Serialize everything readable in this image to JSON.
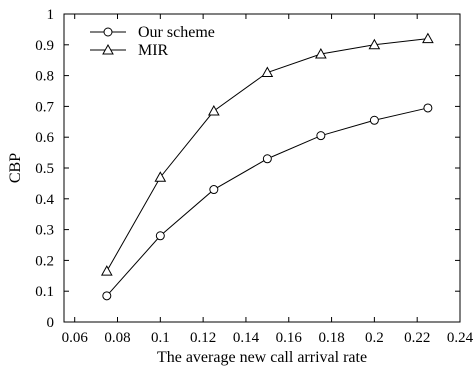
{
  "chart_data": {
    "type": "line",
    "xlabel": "The average new call arrival rate",
    "ylabel": "CBP",
    "xlim": [
      0.055,
      0.24
    ],
    "ylim": [
      0,
      1
    ],
    "xticks": [
      "0.06",
      "0.08",
      "0.1",
      "0.12",
      "0.14",
      "0.16",
      "0.18",
      "0.2",
      "0.22",
      "0.24"
    ],
    "yticks": [
      "0",
      "0.1",
      "0.2",
      "0.3",
      "0.4",
      "0.5",
      "0.6",
      "0.7",
      "0.8",
      "0.9",
      "1"
    ],
    "grid": false,
    "legend_position": "top-left",
    "x": [
      0.075,
      0.1,
      0.125,
      0.15,
      0.175,
      0.2,
      0.225
    ],
    "series": [
      {
        "name": "Our scheme",
        "marker": "circle",
        "values": [
          0.085,
          0.28,
          0.43,
          0.53,
          0.605,
          0.655,
          0.695
        ]
      },
      {
        "name": "MIR",
        "marker": "triangle",
        "values": [
          0.165,
          0.47,
          0.685,
          0.81,
          0.87,
          0.9,
          0.92
        ]
      }
    ]
  }
}
